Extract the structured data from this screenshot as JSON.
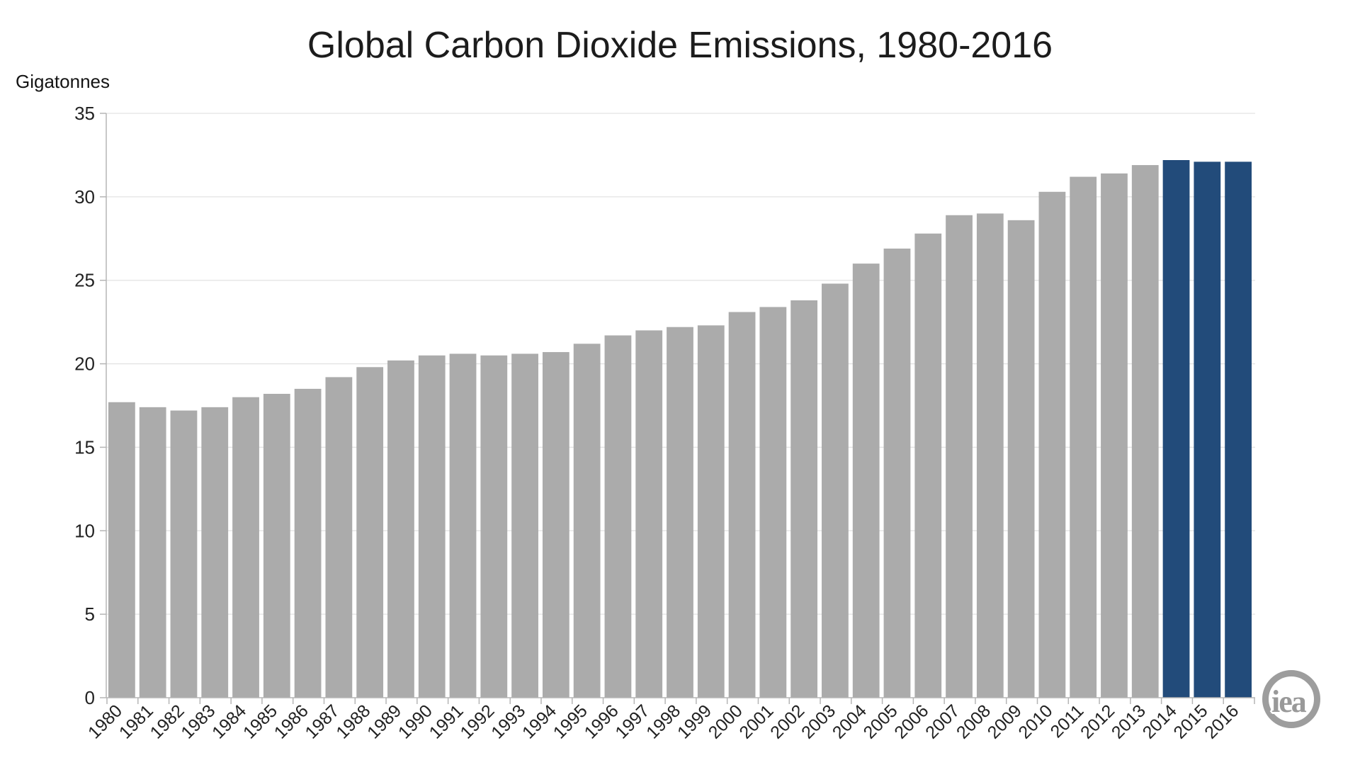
{
  "header": {
    "title": "Global Carbon Dioxide Emissions, 1980-2016",
    "unit_label": "Gigatonnes"
  },
  "logo": {
    "text": "iea"
  },
  "chart_data": {
    "type": "bar",
    "title": "Global Carbon Dioxide Emissions, 1980-2016",
    "xlabel": "",
    "ylabel": "Gigatonnes",
    "ylim": [
      0,
      35
    ],
    "ytick_step": 5,
    "ytick_labels": [
      "0",
      "5",
      "10",
      "15",
      "20",
      "25",
      "30",
      "35"
    ],
    "grid": true,
    "legend": "none",
    "categories": [
      "1980",
      "1981",
      "1982",
      "1983",
      "1984",
      "1985",
      "1986",
      "1987",
      "1988",
      "1989",
      "1990",
      "1991",
      "1992",
      "1993",
      "1994",
      "1995",
      "1996",
      "1997",
      "1998",
      "1999",
      "2000",
      "2001",
      "2002",
      "2003",
      "2004",
      "2005",
      "2006",
      "2007",
      "2008",
      "2009",
      "2010",
      "2011",
      "2012",
      "2013",
      "2014",
      "2015",
      "2016"
    ],
    "values": [
      17.7,
      17.4,
      17.2,
      17.4,
      18.0,
      18.2,
      18.5,
      19.2,
      19.8,
      20.2,
      20.5,
      20.6,
      20.5,
      20.6,
      20.7,
      21.2,
      21.7,
      22.0,
      22.2,
      22.3,
      23.1,
      23.4,
      23.8,
      24.8,
      26.0,
      26.9,
      27.8,
      28.9,
      29.0,
      28.6,
      30.3,
      31.2,
      31.4,
      31.9,
      32.2,
      32.1,
      32.1
    ],
    "highlighted_categories": [
      "2014",
      "2015",
      "2016"
    ],
    "colors": {
      "bar": "#ababab",
      "highlight": "#224b7a",
      "gridline": "#e3e3e3",
      "axis": "#b5b5b5",
      "tick": "#b5b5b5",
      "label_text": "#222222",
      "title_text": "#1c1c1c",
      "logo_gray": "#9d9d9d",
      "background": "#ffffff"
    }
  }
}
